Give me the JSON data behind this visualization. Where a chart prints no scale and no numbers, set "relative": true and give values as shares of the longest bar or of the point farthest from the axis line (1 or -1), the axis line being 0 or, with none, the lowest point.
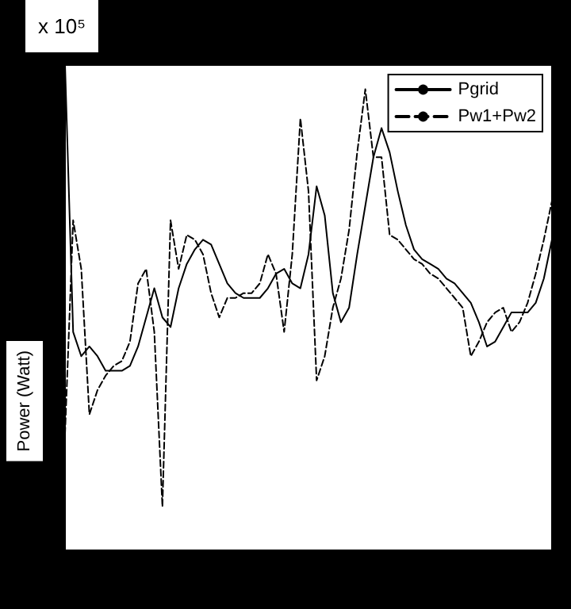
{
  "chart_data": {
    "type": "line",
    "relative": true,
    "ylabel": "Power (Watt)",
    "annotations": [
      "x 10⁵"
    ],
    "categories": [
      null,
      null,
      null,
      null,
      null,
      null,
      null,
      null,
      null,
      null,
      null,
      null,
      null,
      null,
      null,
      null,
      null,
      null,
      null,
      null,
      null,
      null,
      null,
      null,
      null,
      null,
      null,
      null,
      null,
      null,
      null,
      null,
      null,
      null,
      null,
      null,
      null,
      null,
      null,
      null,
      null,
      null,
      null,
      null,
      null,
      null,
      null,
      null,
      null,
      null,
      null,
      null,
      null,
      null,
      null,
      null,
      null,
      null,
      null,
      null,
      null
    ],
    "series": [
      {
        "name": "Pgrid",
        "color": "#000000",
        "line_style": "solid",
        "values": [
          1.0,
          0.45,
          0.4,
          0.42,
          0.4,
          0.37,
          0.37,
          0.37,
          0.38,
          0.42,
          0.48,
          0.54,
          0.48,
          0.46,
          0.54,
          0.59,
          0.62,
          0.64,
          0.63,
          0.59,
          0.55,
          0.53,
          0.52,
          0.52,
          0.52,
          0.54,
          0.57,
          0.58,
          0.55,
          0.54,
          0.61,
          0.75,
          0.69,
          0.53,
          0.47,
          0.5,
          0.61,
          0.71,
          0.81,
          0.87,
          0.82,
          0.74,
          0.67,
          0.62,
          0.6,
          0.59,
          0.58,
          0.56,
          0.55,
          0.53,
          0.51,
          0.47,
          0.42,
          0.43,
          0.46,
          0.49,
          0.49,
          0.49,
          0.51,
          0.56,
          0.64
        ]
      },
      {
        "name": "Pw1+Pw2",
        "color": "#000000",
        "line_style": "dashed",
        "values": [
          0.24,
          0.68,
          0.58,
          0.28,
          0.33,
          0.36,
          0.38,
          0.39,
          0.43,
          0.55,
          0.58,
          0.45,
          0.09,
          0.68,
          0.58,
          0.65,
          0.64,
          0.61,
          0.53,
          0.48,
          0.52,
          0.52,
          0.53,
          0.53,
          0.55,
          0.61,
          0.57,
          0.45,
          0.61,
          0.89,
          0.74,
          0.35,
          0.4,
          0.5,
          0.56,
          0.66,
          0.82,
          0.95,
          0.81,
          0.81,
          0.65,
          0.64,
          0.62,
          0.6,
          0.59,
          0.57,
          0.56,
          0.54,
          0.52,
          0.5,
          0.4,
          0.43,
          0.47,
          0.49,
          0.5,
          0.45,
          0.47,
          0.51,
          0.57,
          0.64,
          0.72
        ]
      }
    ],
    "legend": "top right",
    "grid": false,
    "marker": "none"
  }
}
